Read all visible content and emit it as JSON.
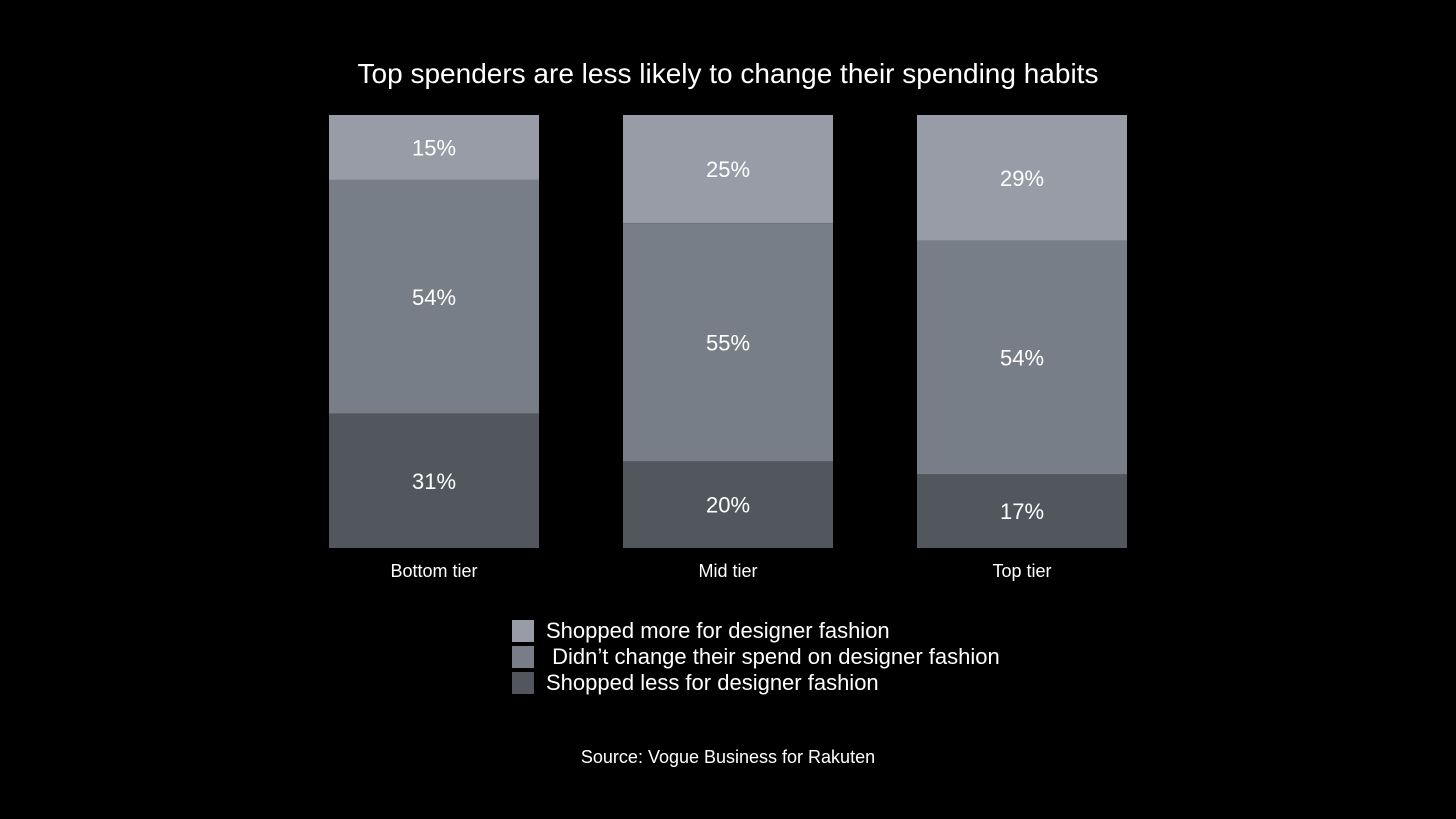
{
  "chart_data": {
    "type": "bar",
    "stacked": true,
    "normalized": true,
    "title": "Top spenders are less likely to change their spending habits",
    "categories": [
      "Bottom tier",
      "Mid tier",
      "Top tier"
    ],
    "series": [
      {
        "name": "Shopped more for designer fashion",
        "values": [
          15,
          25,
          29
        ],
        "labels": [
          "15%",
          "25%",
          "29%"
        ],
        "color": "#979ca7"
      },
      {
        "name": "Didn’t change their spend on designer fashion",
        "values": [
          54,
          55,
          54
        ],
        "labels": [
          "54%",
          "55%",
          "54%"
        ],
        "color": "#787e87"
      },
      {
        "name": "Shopped less for designer fashion",
        "values": [
          31,
          20,
          17
        ],
        "labels": [
          "31%",
          "20%",
          "17%"
        ],
        "color": "#52575e"
      }
    ],
    "legend": "bottom",
    "grid": false,
    "xlabel": "",
    "ylabel": ""
  },
  "legend_items": [
    {
      "label": "Shopped more for designer fashion",
      "color": "#979ca7"
    },
    {
      "label": " Didn’t change their spend on designer fashion",
      "color": "#787e87"
    },
    {
      "label": "Shopped less for designer fashion",
      "color": "#52575e"
    }
  ],
  "source": "Source: Vogue Business for Rakuten",
  "colors": {
    "background": "#000000",
    "text": "#ffffff"
  }
}
